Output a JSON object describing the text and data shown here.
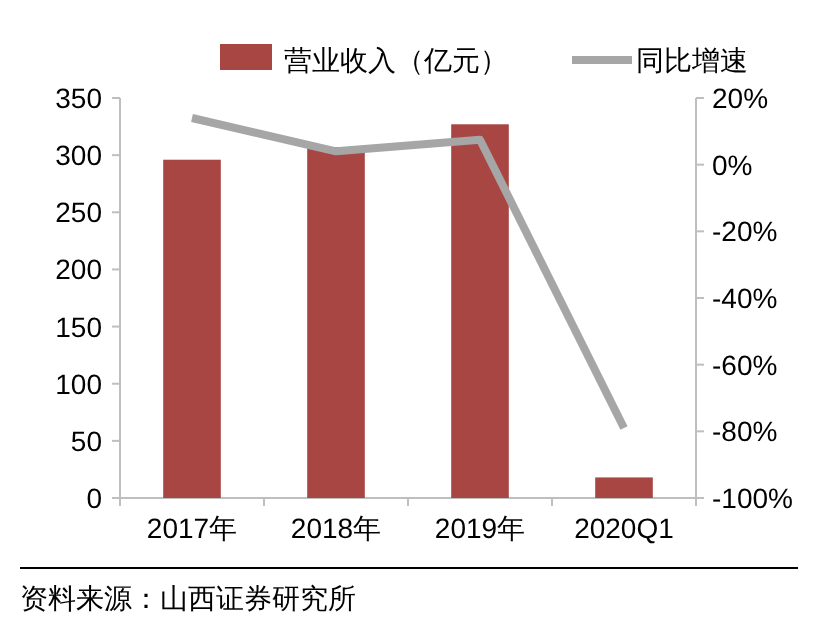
{
  "chart_data": {
    "type": "bar",
    "categories": [
      "2017年",
      "2018年",
      "2019年",
      "2020Q1"
    ],
    "series": [
      {
        "name": "营业收入（亿元）",
        "color": "#a84643",
        "values": [
          296,
          307,
          327,
          18
        ]
      },
      {
        "name": "同比增速",
        "type": "line",
        "axis": "y2",
        "color": "#a6a6a6",
        "values": [
          14,
          4,
          7.5,
          -79
        ]
      }
    ],
    "ylim": [
      0,
      350
    ],
    "yticks": [
      0,
      50,
      100,
      150,
      200,
      250,
      300,
      350
    ],
    "y2lim": [
      -100,
      20
    ],
    "y2ticks": [
      {
        "value": -100,
        "label": "-100%"
      },
      {
        "value": -80,
        "label": "-80%"
      },
      {
        "value": -60,
        "label": "-60%"
      },
      {
        "value": -40,
        "label": "-40%"
      },
      {
        "value": -20,
        "label": "-20%"
      },
      {
        "value": 0,
        "label": "0%"
      },
      {
        "value": 20,
        "label": "20%"
      }
    ],
    "legend": "top",
    "grid": false,
    "marker": "none",
    "annotations": [
      "资料来源：山西证券研究所"
    ]
  }
}
